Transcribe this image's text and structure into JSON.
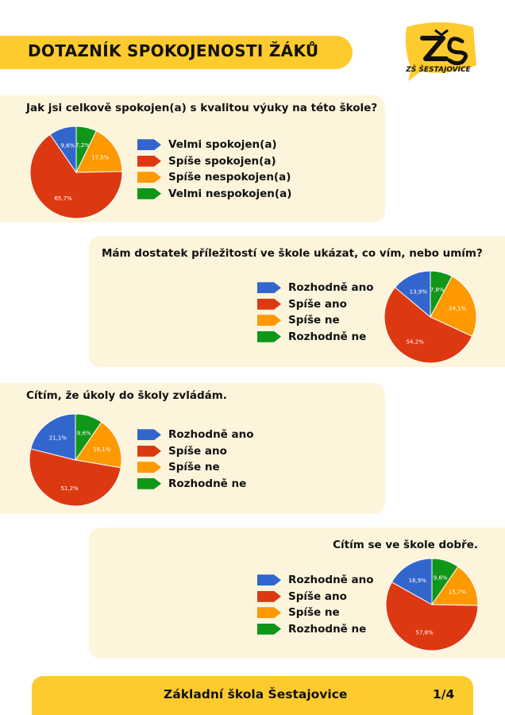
{
  "header": {
    "title": "DOTAZNÍK SPOKOJENOSTI ŽÁKŮ",
    "logo_text": "ZŠ ŠESTAJOVICE"
  },
  "colors": {
    "blue": "#3366cc",
    "red": "#dc3912",
    "orange": "#ff9900",
    "green": "#109618",
    "card": "#fdf4dc",
    "accent": "#fecb2f"
  },
  "footer": {
    "school": "Základní škola Šestajovice",
    "page": "1/4"
  },
  "chart_data": [
    {
      "type": "pie",
      "title": "Jak jsi celkově spokojen(a) s kvalitou výuky na této škole?",
      "categories": [
        "Velmi spokojen(a)",
        "Spíše spokojen(a)",
        "Spíše nespokojen(a)",
        "Velmi nespokojen(a)"
      ],
      "values": [
        9.6,
        65.7,
        17.5,
        7.2
      ],
      "labels": [
        "9,6%",
        "65,7%",
        "17,5%",
        "7,2%"
      ]
    },
    {
      "type": "pie",
      "title": "Mám dostatek příležitostí ve škole ukázat, co vím, nebo umím?",
      "categories": [
        "Rozhodně ano",
        "Spíše ano",
        "Spíše ne",
        "Rozhodně ne"
      ],
      "values": [
        13.9,
        54.2,
        24.1,
        7.8
      ],
      "labels": [
        "13,9%",
        "54,2%",
        "24,1%",
        "7,8%"
      ]
    },
    {
      "type": "pie",
      "title": "Cítím, že úkoly do školy zvládám.",
      "categories": [
        "Rozhodně ano",
        "Spíše ano",
        "Spíše ne",
        "Rozhodně ne"
      ],
      "values": [
        21.1,
        51.2,
        18.1,
        9.6
      ],
      "labels": [
        "21,1%",
        "51,2%",
        "18,1%",
        "9,6%"
      ]
    },
    {
      "type": "pie",
      "title": "Cítím se ve škole dobře.",
      "categories": [
        "Rozhodně ano",
        "Spíše ano",
        "Spíše ne",
        "Rozhodně ne"
      ],
      "values": [
        16.9,
        57.8,
        15.7,
        9.6
      ],
      "labels": [
        "16,9%",
        "57,8%",
        "15,7%",
        "9,6%"
      ]
    }
  ]
}
